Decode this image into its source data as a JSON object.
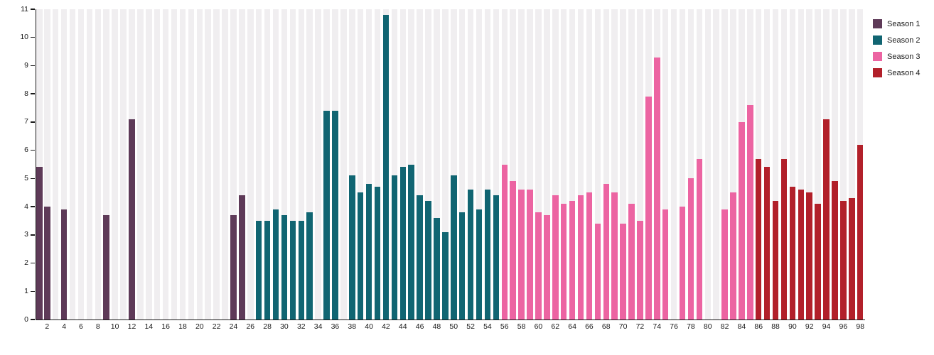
{
  "chart_data": {
    "type": "bar",
    "title": "",
    "xlabel": "",
    "ylabel": "",
    "ylim": [
      0,
      11
    ],
    "y_ticks": [
      0,
      1,
      2,
      3,
      4,
      5,
      6,
      7,
      8,
      9,
      10,
      11
    ],
    "x_slots": 98,
    "x_tick_labels": [
      2,
      4,
      6,
      8,
      10,
      12,
      14,
      16,
      18,
      20,
      22,
      24,
      26,
      28,
      30,
      32,
      34,
      36,
      38,
      40,
      42,
      44,
      46,
      48,
      50,
      52,
      54,
      56,
      58,
      60,
      62,
      64,
      66,
      68,
      70,
      72,
      74,
      76,
      78,
      80,
      82,
      84,
      86,
      88,
      90,
      92,
      94,
      96,
      98
    ],
    "grid": false,
    "background_stripes": true,
    "legend_position": "top-right",
    "series": [
      {
        "name": "Season 1",
        "color": "#5e3a58",
        "points": [
          [
            1,
            5.4
          ],
          [
            2,
            4.0
          ],
          [
            4,
            3.9
          ],
          [
            9,
            3.7
          ],
          [
            12,
            7.1
          ],
          [
            24,
            3.7
          ],
          [
            25,
            4.4
          ]
        ]
      },
      {
        "name": "Season 2",
        "color": "#116572",
        "points": [
          [
            27,
            3.5
          ],
          [
            28,
            3.5
          ],
          [
            29,
            3.9
          ],
          [
            30,
            3.7
          ],
          [
            31,
            3.5
          ],
          [
            32,
            3.5
          ],
          [
            33,
            3.8
          ],
          [
            35,
            7.4
          ],
          [
            36,
            7.4
          ],
          [
            38,
            5.1
          ],
          [
            39,
            4.5
          ],
          [
            40,
            4.8
          ],
          [
            41,
            4.7
          ],
          [
            42,
            10.8
          ],
          [
            43,
            5.1
          ],
          [
            44,
            5.4
          ],
          [
            45,
            5.5
          ],
          [
            46,
            4.4
          ],
          [
            47,
            4.2
          ],
          [
            48,
            3.6
          ],
          [
            49,
            3.1
          ],
          [
            50,
            5.1
          ],
          [
            51,
            3.8
          ],
          [
            52,
            4.6
          ],
          [
            53,
            3.9
          ],
          [
            54,
            4.6
          ],
          [
            55,
            4.4
          ]
        ]
      },
      {
        "name": "Season 3",
        "color": "#ec64a2",
        "points": [
          [
            56,
            5.5
          ],
          [
            57,
            4.9
          ],
          [
            58,
            4.6
          ],
          [
            59,
            4.6
          ],
          [
            60,
            3.8
          ],
          [
            61,
            3.7
          ],
          [
            62,
            4.4
          ],
          [
            63,
            4.1
          ],
          [
            64,
            4.2
          ],
          [
            65,
            4.4
          ],
          [
            66,
            4.5
          ],
          [
            67,
            3.4
          ],
          [
            68,
            4.8
          ],
          [
            69,
            4.5
          ],
          [
            70,
            3.4
          ],
          [
            71,
            4.1
          ],
          [
            72,
            3.5
          ],
          [
            73,
            7.9
          ],
          [
            74,
            9.3
          ],
          [
            75,
            3.9
          ],
          [
            77,
            4.0
          ],
          [
            78,
            5.0
          ],
          [
            79,
            5.7
          ],
          [
            82,
            3.9
          ],
          [
            83,
            4.5
          ],
          [
            84,
            7.0
          ],
          [
            85,
            7.6
          ]
        ]
      },
      {
        "name": "Season 4",
        "color": "#b2202a",
        "points": [
          [
            86,
            5.7
          ],
          [
            87,
            5.4
          ],
          [
            88,
            4.2
          ],
          [
            89,
            5.7
          ],
          [
            90,
            4.7
          ],
          [
            91,
            4.6
          ],
          [
            92,
            4.5
          ],
          [
            93,
            4.1
          ],
          [
            94,
            7.1
          ],
          [
            95,
            4.9
          ],
          [
            96,
            4.2
          ],
          [
            97,
            4.3
          ],
          [
            98,
            6.2
          ]
        ]
      }
    ]
  },
  "colors": {
    "background_stripe": "#f0eef0",
    "axis": "#1a1a1a",
    "tick_text": "#1a1a1a",
    "legend_text": "#1a1a1a",
    "page_background": "#ffffff"
  }
}
